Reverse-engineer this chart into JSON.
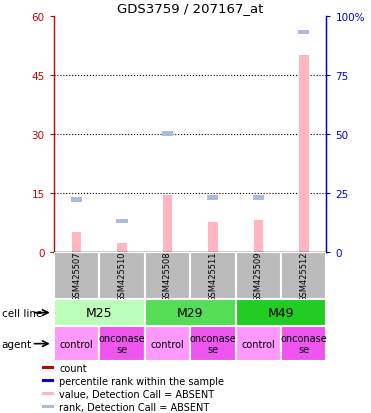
{
  "title": "GDS3759 / 207167_at",
  "samples": [
    "GSM425507",
    "GSM425510",
    "GSM425508",
    "GSM425511",
    "GSM425509",
    "GSM425512"
  ],
  "cell_lines": [
    {
      "label": "M25",
      "span": [
        0,
        2
      ]
    },
    {
      "label": "M29",
      "span": [
        2,
        4
      ]
    },
    {
      "label": "M49",
      "span": [
        4,
        6
      ]
    }
  ],
  "cell_line_colors": [
    "#BBFFBB",
    "#55DD55",
    "#22CC22"
  ],
  "agents": [
    "control",
    "onconase\nse",
    "control",
    "onconase\nse",
    "control",
    "onconase\nse"
  ],
  "agent_colors": [
    "#FF99FF",
    "#EE55EE",
    "#FF99FF",
    "#EE55EE",
    "#FF99FF",
    "#EE55EE"
  ],
  "value_absent": [
    5.0,
    2.2,
    14.5,
    7.5,
    8.0,
    50.0
  ],
  "rank_absent_pct": [
    22.0,
    13.0,
    50.0,
    23.0,
    23.0,
    93.0
  ],
  "left_yticks": [
    0,
    15,
    30,
    45,
    60
  ],
  "right_ytick_pcts": [
    0,
    25,
    50,
    75,
    100
  ],
  "right_ytick_labels": [
    "0",
    "25",
    "50",
    "75",
    "100%"
  ],
  "left_color": "#CC0000",
  "right_color": "#0000CC",
  "value_absent_color": "#FFB6C1",
  "rank_absent_color": "#AABBDD",
  "sample_box_color": "#BBBBBB",
  "legend_items": [
    {
      "label": "count",
      "color": "#CC0000"
    },
    {
      "label": "percentile rank within the sample",
      "color": "#0000CC"
    },
    {
      "label": "value, Detection Call = ABSENT",
      "color": "#FFB6C1"
    },
    {
      "label": "rank, Detection Call = ABSENT",
      "color": "#AABBDD"
    }
  ]
}
